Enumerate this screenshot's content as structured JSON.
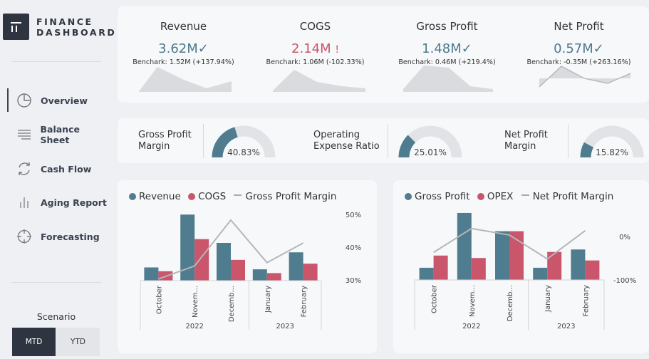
{
  "app": {
    "logo_line1": "FINANCE",
    "logo_line2": "DASHBOARD"
  },
  "sidebar": {
    "items": [
      {
        "label": "Overview",
        "icon": "pie-chart-icon",
        "active": true
      },
      {
        "label": "Balance Sheet",
        "icon": "list-lines-icon",
        "active": false
      },
      {
        "label": "Cash Flow",
        "icon": "refresh-arrows-icon",
        "active": false
      },
      {
        "label": "Aging Report",
        "icon": "bar-chart-icon",
        "active": false
      },
      {
        "label": "Forecasting",
        "icon": "crosshair-icon",
        "active": false
      }
    ],
    "scenario_label": "Scenario",
    "scenario_options": [
      "MTD",
      "YTD"
    ],
    "scenario_selected": "MTD"
  },
  "kpis": [
    {
      "title": "Revenue",
      "value": "3.62M",
      "status": "✓",
      "benchmark": "Benchark: 1.52M (+137.94%)",
      "color": "#4d7a8c"
    },
    {
      "title": "COGS",
      "value": "2.14M",
      "status": "!",
      "benchmark": "Benchark: 1.06M (-102.33%)",
      "color": "#c8576a"
    },
    {
      "title": "Gross Profit",
      "value": "1.48M",
      "status": "✓",
      "benchmark": "Benchark: 0.46M (+219.4%)",
      "color": "#4d7a8c"
    },
    {
      "title": "Net Profit",
      "value": "0.57M",
      "status": "✓",
      "benchmark": "Benchark: -0.35M (+263.16%)",
      "color": "#4d7a8c"
    }
  ],
  "gauges": [
    {
      "label_line1": "Gross Profit",
      "label_line2": "Margin",
      "value_text": "40.83%",
      "fraction": 0.4083
    },
    {
      "label_line1": "Operating",
      "label_line2": "Expense Ratio",
      "value_text": "25.01%",
      "fraction": 0.2501
    },
    {
      "label_line1": "Net Profit",
      "label_line2": "Margin",
      "value_text": "15.82%",
      "fraction": 0.1582
    }
  ],
  "colors": {
    "teal": "#4f7d8f",
    "pink": "#c9566b",
    "line": "#b4b6ba",
    "fill": "#d9dbdf"
  },
  "chart_data": [
    {
      "type": "bar",
      "legend": [
        "Revenue",
        "COGS",
        "Gross Profit Margin"
      ],
      "categories": [
        "October",
        "Novem...",
        "Decemb...",
        "January",
        "February"
      ],
      "year_groups": [
        {
          "label": "2022",
          "span": 3
        },
        {
          "label": "2023",
          "span": 2
        }
      ],
      "series": [
        {
          "name": "Revenue",
          "kind": "bar",
          "values": [
            0.35,
            1.75,
            1.0,
            0.3,
            0.75
          ]
        },
        {
          "name": "COGS",
          "kind": "bar",
          "values": [
            0.25,
            1.1,
            0.55,
            0.2,
            0.45
          ]
        },
        {
          "name": "Gross Profit Margin",
          "kind": "line",
          "axis": "right",
          "values": [
            30.5,
            34.5,
            48.5,
            35.5,
            41.5
          ]
        }
      ],
      "y_right_ticks": [
        "50%",
        "40%",
        "30%"
      ],
      "y_right_range": [
        30,
        50
      ]
    },
    {
      "type": "bar",
      "legend": [
        "Gross Profit",
        "OPEX",
        "Net Profit Margin"
      ],
      "categories": [
        "October",
        "Novem...",
        "Decemb...",
        "January",
        "February"
      ],
      "year_groups": [
        {
          "label": "2022",
          "span": 3
        },
        {
          "label": "2023",
          "span": 2
        }
      ],
      "series": [
        {
          "name": "Gross Profit",
          "kind": "bar",
          "values": [
            0.1,
            0.55,
            0.4,
            0.1,
            0.25
          ]
        },
        {
          "name": "OPEX",
          "kind": "bar",
          "values": [
            0.2,
            0.18,
            0.4,
            0.23,
            0.16
          ]
        },
        {
          "name": "Net Profit Margin",
          "kind": "line",
          "axis": "right",
          "values": [
            -35,
            20,
            5,
            -50,
            15
          ]
        }
      ],
      "y_right_ticks": [
        "0%",
        "-100%"
      ],
      "y_right_range": [
        -100,
        0
      ]
    }
  ]
}
